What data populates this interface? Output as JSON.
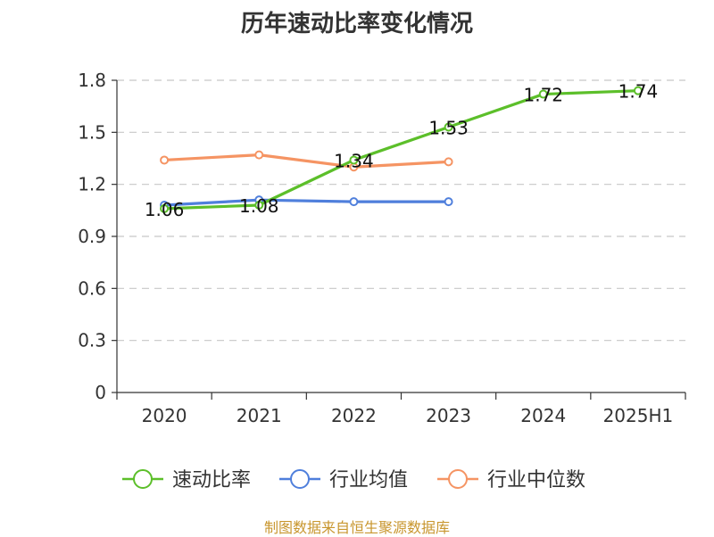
{
  "chart_data": {
    "type": "line",
    "title": "历年速动比率变化情况",
    "categories": [
      "2020",
      "2021",
      "2022",
      "2023",
      "2024",
      "2025H1"
    ],
    "ylim": [
      0,
      1.8
    ],
    "yticks": [
      "0",
      "0.3",
      "0.6",
      "0.9",
      "1.2",
      "1.5",
      "1.8"
    ],
    "grid": true,
    "legend_position": "bottom",
    "series": [
      {
        "name": "速动比率",
        "color": "#5cbf2a",
        "values": [
          1.06,
          1.08,
          1.34,
          1.53,
          1.72,
          1.74
        ],
        "labels": [
          "1.06",
          "1.08",
          "1.34",
          "1.53",
          "1.72",
          "1.74"
        ]
      },
      {
        "name": "行业均值",
        "color": "#4f7fdc",
        "values": [
          1.08,
          1.11,
          1.1,
          1.1,
          null,
          null
        ]
      },
      {
        "name": "行业中位数",
        "color": "#f59463",
        "values": [
          1.34,
          1.37,
          1.3,
          1.33,
          null,
          null
        ]
      }
    ]
  },
  "source": "制图数据来自恒生聚源数据库"
}
